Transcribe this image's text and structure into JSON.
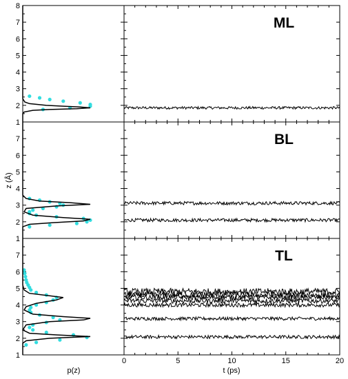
{
  "chart_data": {
    "type": "line",
    "xlabel_left": "p(z)",
    "xlabel_right": "t (ps)",
    "ylabel": "z (Å)",
    "x_right_ticks": [
      "0",
      "5",
      "10",
      "15",
      "20"
    ],
    "xlim_right": [
      0,
      20
    ],
    "ylim": [
      1,
      8
    ],
    "panels": [
      {
        "label": "ML",
        "y_ticks": [
          "1",
          "2",
          "3",
          "4",
          "5",
          "6",
          "7",
          "8"
        ],
        "distribution": {
          "reference_curve": {
            "z": [
              1.0,
              1.5,
              1.6,
              1.7,
              1.75,
              1.8,
              1.85,
              1.9,
              1.95,
              2.0,
              2.1,
              2.2,
              2.4,
              3.0,
              8.0
            ],
            "p": [
              0,
              0,
              0.02,
              0.15,
              0.4,
              0.8,
              1.0,
              0.85,
              0.6,
              0.35,
              0.1,
              0.03,
              0,
              0,
              0
            ]
          },
          "model_points": {
            "z": [
              1.75,
              1.85,
              1.95,
              2.05,
              2.15,
              2.25,
              2.35,
              2.45,
              2.55
            ],
            "p": [
              0.3,
              0.7,
              1.0,
              1.0,
              0.85,
              0.6,
              0.4,
              0.25,
              0.1
            ]
          }
        },
        "trajectories": [
          {
            "mean": 1.85,
            "amplitude": 0.08
          }
        ]
      },
      {
        "label": "BL",
        "y_ticks": [
          "1",
          "2",
          "3",
          "4",
          "5",
          "6",
          "7"
        ],
        "distribution": {
          "reference_curve": {
            "z": [
              1.0,
              1.7,
              1.85,
              1.95,
              2.05,
              2.15,
              2.25,
              2.4,
              2.6,
              2.8,
              2.95,
              3.05,
              3.15,
              3.25,
              3.4,
              3.6,
              8.0
            ],
            "p": [
              0,
              0,
              0.1,
              0.45,
              0.9,
              1.0,
              0.6,
              0.15,
              0.02,
              0.05,
              0.5,
              1.0,
              0.7,
              0.25,
              0.05,
              0,
              0
            ]
          },
          "model_points": {
            "z": [
              1.7,
              1.8,
              1.9,
              2.0,
              2.1,
              2.2,
              2.3,
              2.4,
              2.5,
              2.6,
              2.7,
              2.8,
              2.9,
              3.0,
              3.1,
              3.2,
              3.3,
              3.4
            ],
            "p": [
              0.1,
              0.4,
              0.8,
              0.95,
              1.0,
              0.9,
              0.5,
              0.2,
              0.1,
              0.1,
              0.15,
              0.3,
              0.5,
              0.6,
              0.55,
              0.4,
              0.25,
              0.1
            ]
          }
        },
        "trajectories": [
          {
            "mean": 2.1,
            "amplitude": 0.1
          },
          {
            "mean": 3.12,
            "amplitude": 0.1
          }
        ]
      },
      {
        "label": "TL",
        "y_ticks": [
          "1",
          "2",
          "3",
          "4",
          "5",
          "6",
          "7"
        ],
        "distribution": {
          "reference_curve": {
            "z": [
              1.0,
              1.7,
              1.85,
              2.0,
              2.1,
              2.2,
              2.3,
              2.5,
              2.8,
              3.0,
              3.1,
              3.2,
              3.3,
              3.45,
              3.7,
              3.9,
              4.1,
              4.3,
              4.45,
              4.55,
              4.7,
              4.9,
              5.2,
              8.0
            ],
            "p": [
              0,
              0,
              0.05,
              0.4,
              1.0,
              0.5,
              0.1,
              0,
              0.05,
              0.4,
              0.9,
              1.0,
              0.6,
              0.15,
              0.02,
              0.05,
              0.2,
              0.5,
              0.6,
              0.4,
              0.1,
              0.02,
              0,
              0
            ]
          },
          "model_points": {
            "z": [
              1.6,
              1.75,
              1.9,
              2.05,
              2.2,
              2.35,
              2.5,
              2.65,
              2.8,
              2.95,
              3.1,
              3.25,
              3.4,
              3.55,
              3.7,
              3.85,
              4.0,
              4.15,
              4.3,
              4.45,
              4.6,
              4.75,
              4.9,
              5.05,
              5.2,
              5.35,
              5.5,
              5.7,
              5.9,
              6.1
            ],
            "p": [
              0.05,
              0.2,
              0.55,
              0.95,
              0.75,
              0.35,
              0.15,
              0.1,
              0.15,
              0.35,
              0.55,
              0.45,
              0.25,
              0.12,
              0.1,
              0.12,
              0.2,
              0.35,
              0.45,
              0.5,
              0.35,
              0.2,
              0.12,
              0.1,
              0.08,
              0.06,
              0.05,
              0.04,
              0.03,
              0.02
            ]
          }
        },
        "trajectories": [
          {
            "mean": 2.08,
            "amplitude": 0.1
          },
          {
            "mean": 3.18,
            "amplitude": 0.1
          },
          {
            "mean": 4.0,
            "amplitude": 0.12
          },
          {
            "mean": 4.25,
            "amplitude": 0.15
          },
          {
            "mean": 4.45,
            "amplitude": 0.15
          },
          {
            "mean": 4.6,
            "amplitude": 0.18
          },
          {
            "mean": 4.8,
            "amplitude": 0.2
          }
        ]
      }
    ],
    "colors": {
      "reference": "#000000",
      "model": "#33dde0",
      "trajectory": "#000000"
    }
  }
}
